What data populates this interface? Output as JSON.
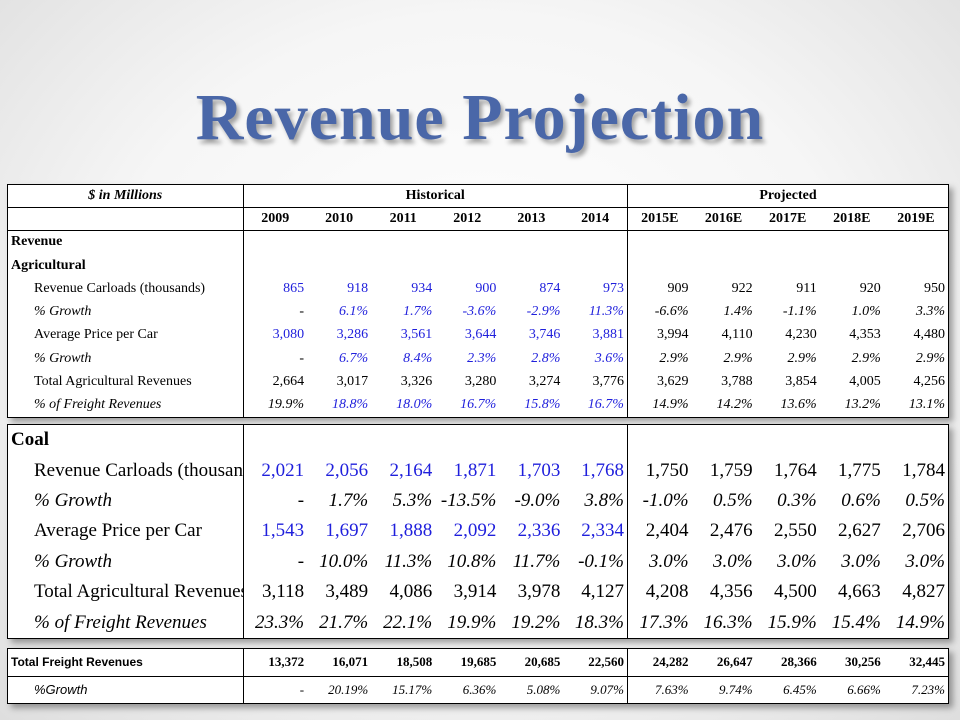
{
  "title": "Revenue Projection",
  "units_label": "$ in Millions",
  "historical_label": "Historical",
  "projected_label": "Projected",
  "years": [
    "2009",
    "2010",
    "2011",
    "2012",
    "2013",
    "2014",
    "2015E",
    "2016E",
    "2017E",
    "2018E",
    "2019E"
  ],
  "agricultural": {
    "section_label": "Revenue",
    "subsection_label": "Agricultural",
    "rows": [
      {
        "label": "Revenue Carloads (thousands)",
        "style": "input",
        "values": [
          "865",
          "918",
          "934",
          "900",
          "874",
          "973",
          "909",
          "922",
          "911",
          "920",
          "950"
        ]
      },
      {
        "label": "% Growth",
        "style": "italic",
        "values": [
          "-",
          "6.1%",
          "1.7%",
          "-3.6%",
          "-2.9%",
          "11.3%",
          "-6.6%",
          "1.4%",
          "-1.1%",
          "1.0%",
          "3.3%"
        ]
      },
      {
        "label": "Average Price per Car",
        "style": "input",
        "values": [
          "3,080",
          "3,286",
          "3,561",
          "3,644",
          "3,746",
          "3,881",
          "3,994",
          "4,110",
          "4,230",
          "4,353",
          "4,480"
        ]
      },
      {
        "label": "% Growth",
        "style": "italic",
        "values": [
          "-",
          "6.7%",
          "8.4%",
          "2.3%",
          "2.8%",
          "3.6%",
          "2.9%",
          "2.9%",
          "2.9%",
          "2.9%",
          "2.9%"
        ]
      },
      {
        "label": "Total Agricultural Revenues",
        "style": "plain",
        "values": [
          "2,664",
          "3,017",
          "3,326",
          "3,280",
          "3,274",
          "3,776",
          "3,629",
          "3,788",
          "3,854",
          "4,005",
          "4,256"
        ]
      },
      {
        "label": "% of Freight Revenues",
        "style": "italic",
        "values": [
          "19.9%",
          "18.8%",
          "18.0%",
          "16.7%",
          "15.8%",
          "16.7%",
          "14.9%",
          "14.2%",
          "13.6%",
          "13.2%",
          "13.1%"
        ]
      }
    ]
  },
  "coal": {
    "section_label": "Coal",
    "rows": [
      {
        "label": "Revenue Carloads (thousands)",
        "style": "input",
        "values": [
          "2,021",
          "2,056",
          "2,164",
          "1,871",
          "1,703",
          "1,768",
          "1,750",
          "1,759",
          "1,764",
          "1,775",
          "1,784"
        ]
      },
      {
        "label": "% Growth",
        "style": "italic",
        "values": [
          "-",
          "1.7%",
          "5.3%",
          "-13.5%",
          "-9.0%",
          "3.8%",
          "-1.0%",
          "0.5%",
          "0.3%",
          "0.6%",
          "0.5%"
        ]
      },
      {
        "label": "Average Price per Car",
        "style": "input",
        "values": [
          "1,543",
          "1,697",
          "1,888",
          "2,092",
          "2,336",
          "2,334",
          "2,404",
          "2,476",
          "2,550",
          "2,627",
          "2,706"
        ]
      },
      {
        "label": "% Growth",
        "style": "italic",
        "values": [
          "-",
          "10.0%",
          "11.3%",
          "10.8%",
          "11.7%",
          "-0.1%",
          "3.0%",
          "3.0%",
          "3.0%",
          "3.0%",
          "3.0%"
        ]
      },
      {
        "label": "Total Agricultural Revenues (m",
        "style": "plain",
        "values": [
          "3,118",
          "3,489",
          "4,086",
          "3,914",
          "3,978",
          "4,127",
          "4,208",
          "4,356",
          "4,500",
          "4,663",
          "4,827"
        ]
      },
      {
        "label": "% of Freight Revenues",
        "style": "italic",
        "values": [
          "23.3%",
          "21.7%",
          "22.1%",
          "19.9%",
          "19.2%",
          "18.3%",
          "17.3%",
          "16.3%",
          "15.9%",
          "15.4%",
          "14.9%"
        ]
      }
    ]
  },
  "totals": {
    "rows": [
      {
        "label": "Total Freight Revenues",
        "style": "total",
        "values": [
          "13,372",
          "16,071",
          "18,508",
          "19,685",
          "20,685",
          "22,560",
          "24,282",
          "26,647",
          "28,366",
          "30,256",
          "32,445"
        ]
      },
      {
        "label": "%Growth",
        "style": "italic",
        "values": [
          "-",
          "20.19%",
          "15.17%",
          "6.36%",
          "5.08%",
          "9.07%",
          "7.63%",
          "9.74%",
          "6.45%",
          "6.66%",
          "7.23%"
        ]
      }
    ]
  },
  "colors": {
    "title": "#4a67a8",
    "input_values": "#1f1fdc"
  }
}
